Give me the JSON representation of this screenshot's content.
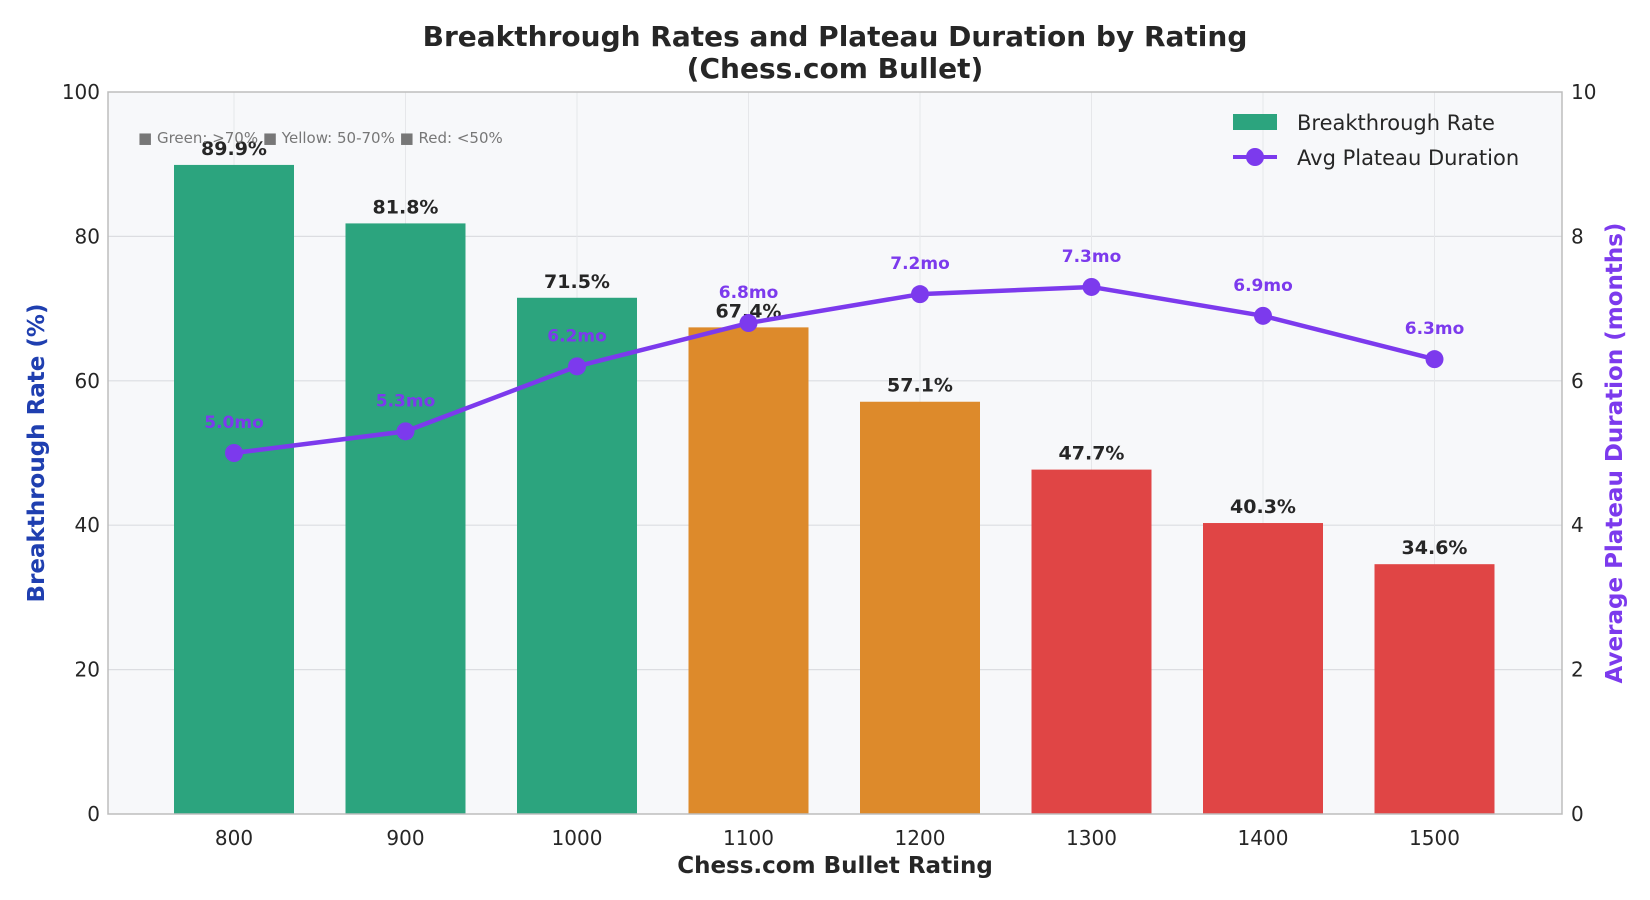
{
  "chart_data": {
    "type": "bar",
    "title": "Breakthrough Rates and Plateau Duration by Rating",
    "subtitle": "(Chess.com Bullet)",
    "xlabel": "Chess.com Bullet Rating",
    "ylabel": "Breakthrough Rate (%)",
    "y2label": "Average Plateau Duration (months)",
    "categories": [
      "800",
      "900",
      "1000",
      "1100",
      "1200",
      "1300",
      "1400",
      "1500"
    ],
    "ylim": [
      0,
      100
    ],
    "y2lim": [
      0,
      10
    ],
    "yticks": [
      0,
      20,
      40,
      60,
      80,
      100
    ],
    "y2ticks": [
      0,
      2,
      4,
      6,
      8,
      10
    ],
    "grid": true,
    "legend_position": "top-right",
    "series": [
      {
        "name": "Breakthrough Rate",
        "type": "bar",
        "axis": "left",
        "values": [
          89.9,
          81.8,
          71.5,
          67.4,
          57.1,
          47.7,
          40.3,
          34.6
        ],
        "labels": [
          "89.9%",
          "81.8%",
          "71.5%",
          "67.4%",
          "57.1%",
          "47.7%",
          "40.3%",
          "34.6%"
        ],
        "colors": [
          "#2ca47e",
          "#2ca47e",
          "#2ca47e",
          "#dd8a2b",
          "#dd8a2b",
          "#e04545",
          "#e04545",
          "#e04545"
        ]
      },
      {
        "name": "Avg Plateau Duration",
        "type": "line",
        "axis": "right",
        "values": [
          5.0,
          5.3,
          6.2,
          6.8,
          7.2,
          7.3,
          6.9,
          6.3
        ],
        "labels": [
          "5.0mo",
          "5.3mo",
          "6.2mo",
          "6.8mo",
          "7.2mo",
          "7.3mo",
          "6.9mo",
          "6.3mo"
        ],
        "color": "#7c3aed"
      }
    ],
    "color_note": "■ Green: >70%  ■ Yellow: 50-70%  ■ Red: <50%",
    "colors": {
      "green": "#2ca47e",
      "yellow": "#dd8a2b",
      "red": "#e04545",
      "line": "#7c3aed",
      "left_axis_label": "#1f3fb0",
      "plot_bg": "#f7f8fa",
      "grid": "#dcdde1"
    }
  }
}
